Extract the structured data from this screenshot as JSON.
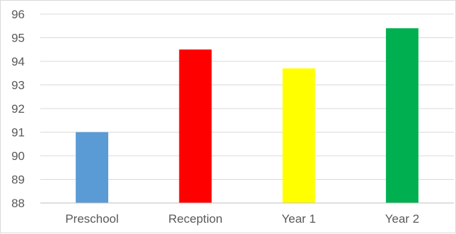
{
  "chart_data": {
    "type": "bar",
    "categories": [
      "Preschool",
      "Reception",
      "Year 1",
      "Year 2"
    ],
    "values": [
      91.0,
      94.5,
      93.7,
      95.4
    ],
    "colors": [
      "#5b9bd5",
      "#ff0000",
      "#ffff00",
      "#00b050"
    ],
    "ylim": [
      88,
      96
    ],
    "yticks": [
      "88",
      "89",
      "90",
      "91",
      "92",
      "93",
      "94",
      "95",
      "96"
    ],
    "grid": true,
    "gridline_color": "#d9d9d9",
    "axis_color": "#bfbfbf",
    "tick_label_color": "#595959",
    "legend": "none"
  }
}
